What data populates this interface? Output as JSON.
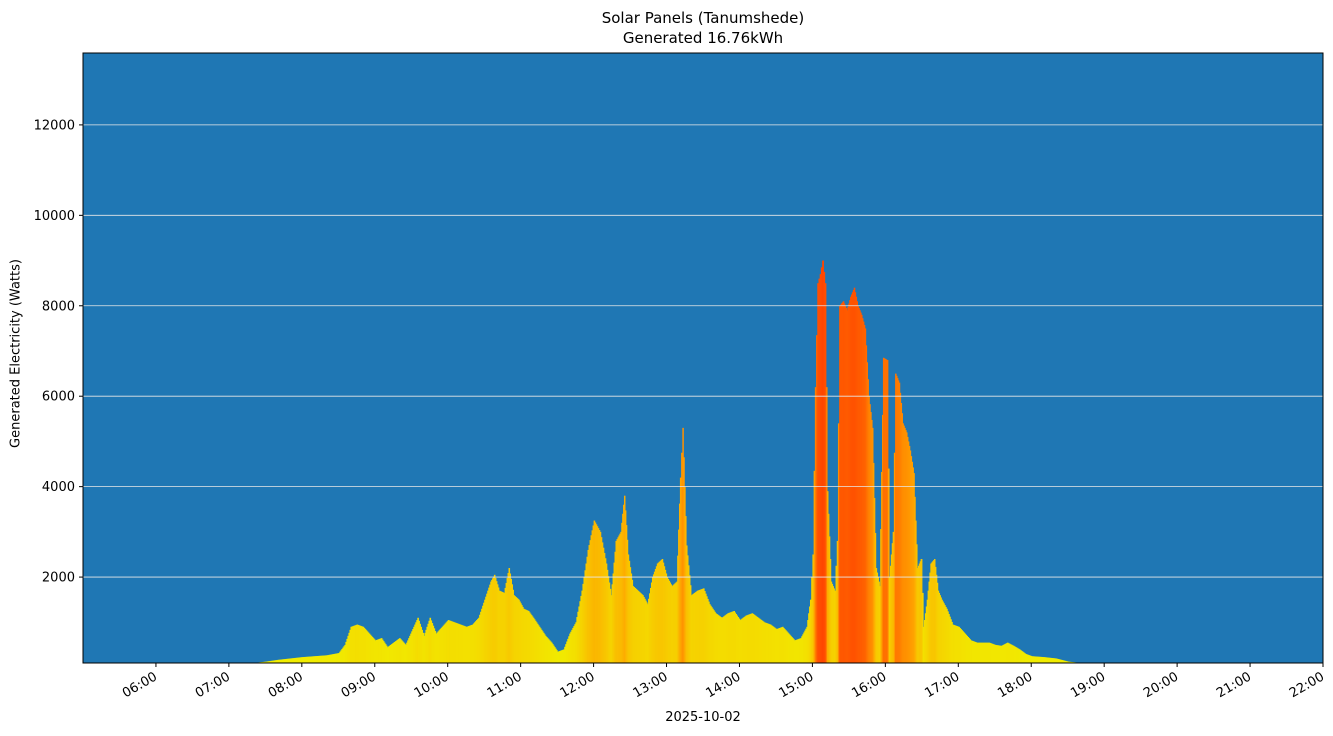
{
  "chart_data": {
    "type": "bar",
    "title": "Solar Panels (Tanumshede)",
    "subtitle": "Generated 16.76kWh",
    "xlabel": "2025-10-02",
    "ylabel": "Generated Electricity (Watts)",
    "ylim": [
      100,
      13590
    ],
    "xlim": [
      "05:00",
      "22:00"
    ],
    "grid": "horizontal",
    "background_color": "#1f77b4",
    "gridline_color": "#e8e8e8",
    "colormap": "value-based yellow (#f5f500) → orange (#ff8c00) → red-orange (#ff4500)",
    "yticks": [
      2000,
      4000,
      6000,
      8000,
      10000,
      12000
    ],
    "xticks": [
      "06:00",
      "07:00",
      "08:00",
      "09:00",
      "10:00",
      "11:00",
      "12:00",
      "13:00",
      "14:00",
      "15:00",
      "16:00",
      "17:00",
      "18:00",
      "19:00",
      "20:00",
      "21:00",
      "22:00"
    ],
    "points": [
      [
        "07:20",
        100
      ],
      [
        "07:30",
        130
      ],
      [
        "07:40",
        170
      ],
      [
        "07:50",
        200
      ],
      [
        "08:00",
        230
      ],
      [
        "08:10",
        250
      ],
      [
        "08:20",
        270
      ],
      [
        "08:30",
        320
      ],
      [
        "08:35",
        500
      ],
      [
        "08:40",
        900
      ],
      [
        "08:45",
        950
      ],
      [
        "08:50",
        900
      ],
      [
        "08:55",
        750
      ],
      [
        "09:00",
        600
      ],
      [
        "09:05",
        650
      ],
      [
        "09:10",
        450
      ],
      [
        "09:15",
        550
      ],
      [
        "09:20",
        650
      ],
      [
        "09:25",
        500
      ],
      [
        "09:30",
        800
      ],
      [
        "09:35",
        1100
      ],
      [
        "09:40",
        700
      ],
      [
        "09:45",
        1100
      ],
      [
        "09:50",
        750
      ],
      [
        "09:55",
        900
      ],
      [
        "10:00",
        1050
      ],
      [
        "10:05",
        1000
      ],
      [
        "10:10",
        950
      ],
      [
        "10:15",
        900
      ],
      [
        "10:20",
        950
      ],
      [
        "10:25",
        1100
      ],
      [
        "10:30",
        1500
      ],
      [
        "10:35",
        1900
      ],
      [
        "10:38",
        2050
      ],
      [
        "10:42",
        1700
      ],
      [
        "10:46",
        1650
      ],
      [
        "10:50",
        2200
      ],
      [
        "10:54",
        1600
      ],
      [
        "10:58",
        1500
      ],
      [
        "11:02",
        1300
      ],
      [
        "11:06",
        1250
      ],
      [
        "11:10",
        1100
      ],
      [
        "11:15",
        900
      ],
      [
        "11:20",
        700
      ],
      [
        "11:25",
        550
      ],
      [
        "11:30",
        350
      ],
      [
        "11:35",
        400
      ],
      [
        "11:40",
        750
      ],
      [
        "11:45",
        1000
      ],
      [
        "11:50",
        1700
      ],
      [
        "11:55",
        2600
      ],
      [
        "12:00",
        3250
      ],
      [
        "12:05",
        3000
      ],
      [
        "12:10",
        2300
      ],
      [
        "12:14",
        1600
      ],
      [
        "12:18",
        2800
      ],
      [
        "12:22",
        3000
      ],
      [
        "12:25",
        3800
      ],
      [
        "12:28",
        2500
      ],
      [
        "12:32",
        1800
      ],
      [
        "12:36",
        1700
      ],
      [
        "12:40",
        1600
      ],
      [
        "12:44",
        1400
      ],
      [
        "12:48",
        2000
      ],
      [
        "12:52",
        2300
      ],
      [
        "12:56",
        2400
      ],
      [
        "13:00",
        2000
      ],
      [
        "13:04",
        1800
      ],
      [
        "13:08",
        1900
      ],
      [
        "13:11",
        4200
      ],
      [
        "13:13",
        5300
      ],
      [
        "13:16",
        2700
      ],
      [
        "13:20",
        1600
      ],
      [
        "13:25",
        1700
      ],
      [
        "13:30",
        1750
      ],
      [
        "13:35",
        1400
      ],
      [
        "13:40",
        1200
      ],
      [
        "13:45",
        1100
      ],
      [
        "13:50",
        1200
      ],
      [
        "13:55",
        1250
      ],
      [
        "14:00",
        1050
      ],
      [
        "14:05",
        1150
      ],
      [
        "14:10",
        1200
      ],
      [
        "14:15",
        1100
      ],
      [
        "14:20",
        1000
      ],
      [
        "14:25",
        950
      ],
      [
        "14:30",
        850
      ],
      [
        "14:35",
        900
      ],
      [
        "14:40",
        750
      ],
      [
        "14:45",
        600
      ],
      [
        "14:50",
        650
      ],
      [
        "14:55",
        900
      ],
      [
        "14:58",
        1500
      ],
      [
        "15:00",
        2500
      ],
      [
        "15:02",
        6200
      ],
      [
        "15:04",
        8500
      ],
      [
        "15:06",
        8700
      ],
      [
        "15:08",
        9000
      ],
      [
        "15:10",
        8500
      ],
      [
        "15:12",
        3900
      ],
      [
        "15:15",
        1900
      ],
      [
        "15:18",
        1700
      ],
      [
        "15:20",
        2800
      ],
      [
        "15:22",
        8000
      ],
      [
        "15:25",
        8100
      ],
      [
        "15:28",
        7900
      ],
      [
        "15:31",
        8200
      ],
      [
        "15:34",
        8400
      ],
      [
        "15:37",
        8000
      ],
      [
        "15:40",
        7800
      ],
      [
        "15:43",
        7500
      ],
      [
        "15:46",
        6000
      ],
      [
        "15:49",
        5300
      ],
      [
        "15:52",
        2200
      ],
      [
        "15:55",
        1800
      ],
      [
        "15:58",
        6850
      ],
      [
        "16:01",
        6800
      ],
      [
        "16:03",
        2000
      ],
      [
        "16:06",
        3000
      ],
      [
        "16:08",
        6500
      ],
      [
        "16:11",
        6300
      ],
      [
        "16:14",
        5400
      ],
      [
        "16:17",
        5200
      ],
      [
        "16:20",
        4800
      ],
      [
        "16:23",
        4300
      ],
      [
        "16:26",
        2200
      ],
      [
        "16:29",
        2400
      ],
      [
        "16:31",
        900
      ],
      [
        "16:34",
        1500
      ],
      [
        "16:37",
        2300
      ],
      [
        "16:40",
        2400
      ],
      [
        "16:43",
        1700
      ],
      [
        "16:46",
        1500
      ],
      [
        "16:50",
        1300
      ],
      [
        "16:55",
        950
      ],
      [
        "17:00",
        900
      ],
      [
        "17:05",
        750
      ],
      [
        "17:10",
        600
      ],
      [
        "17:15",
        550
      ],
      [
        "17:20",
        550
      ],
      [
        "17:25",
        550
      ],
      [
        "17:30",
        500
      ],
      [
        "17:35",
        480
      ],
      [
        "17:40",
        550
      ],
      [
        "17:45",
        480
      ],
      [
        "17:50",
        400
      ],
      [
        "17:55",
        300
      ],
      [
        "18:00",
        250
      ],
      [
        "18:10",
        230
      ],
      [
        "18:20",
        200
      ],
      [
        "18:30",
        130
      ],
      [
        "18:40",
        100
      ],
      [
        "18:50",
        80
      ],
      [
        "19:00",
        60
      ],
      [
        "19:10",
        50
      ],
      [
        "19:20",
        50
      ],
      [
        "19:30",
        50
      ]
    ]
  }
}
